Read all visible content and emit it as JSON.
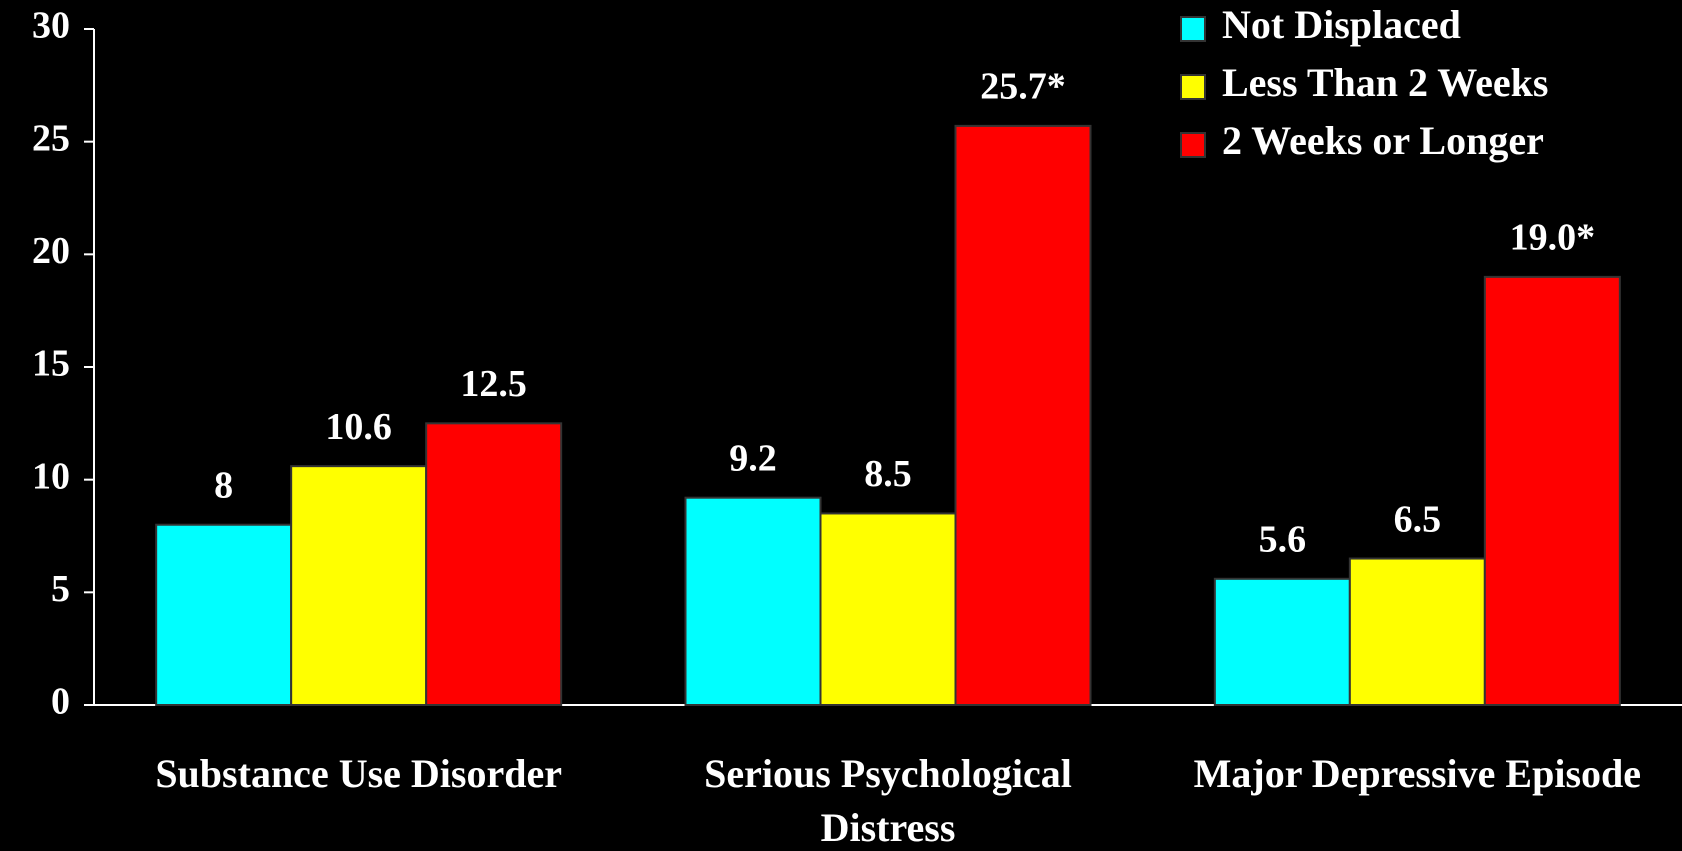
{
  "chart_data": {
    "type": "bar",
    "categories": [
      "Substance Use Disorder",
      "Serious Psychological Distress",
      "Major Depressive Episode"
    ],
    "series": [
      {
        "name": "Not Displaced",
        "color": "#00ffff",
        "values": [
          8,
          9.2,
          5.6
        ]
      },
      {
        "name": "Less Than 2 Weeks",
        "color": "#ffff00",
        "values": [
          10.6,
          8.5,
          6.5
        ]
      },
      {
        "name": "2 Weeks or Longer",
        "color": "#ff0000",
        "values": [
          12.5,
          25.7,
          19.0
        ],
        "value_labels": [
          "12.5",
          "25.7*",
          "19.0*"
        ]
      }
    ],
    "ylim": [
      0,
      30
    ],
    "yticks": [
      0,
      5,
      10,
      15,
      20,
      25,
      30
    ],
    "grid": false,
    "legend": "top-right"
  }
}
